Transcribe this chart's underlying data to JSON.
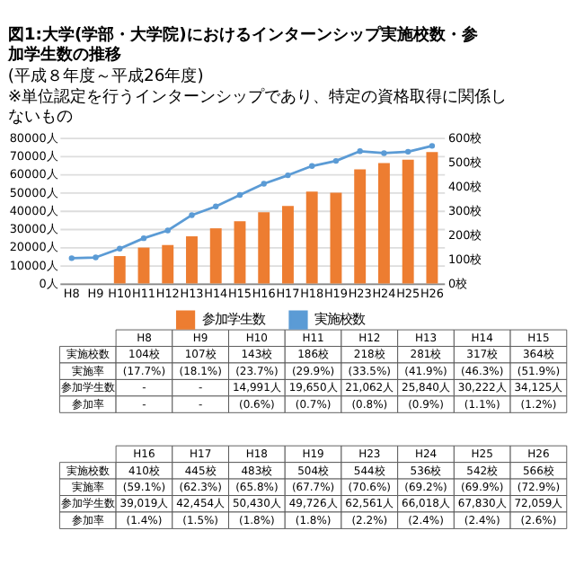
{
  "chart_data": {
    "type": "bar",
    "title": "図1:大学(学部・大学院)におけるインターンシップ実施校数・参加学生数の推移",
    "subtitle": "(平成８年度～平成26年度)",
    "categories": [
      "H8",
      "H9",
      "H10",
      "H11",
      "H12",
      "H13",
      "H14",
      "H15",
      "H16",
      "H17",
      "H18",
      "H19",
      "H23",
      "H24",
      "H25",
      "H26"
    ],
    "series": [
      {
        "name": "参加学生数",
        "type": "bar",
        "color": "#ed7d31",
        "values": [
          null,
          null,
          14991,
          19650,
          21062,
          25840,
          30222,
          34125,
          39019,
          42454,
          50430,
          49726,
          62561,
          66018,
          67830,
          72059
        ]
      },
      {
        "name": "実施校数",
        "type": "line",
        "axis": "y2",
        "color": "#5b9bd5",
        "values": [
          104,
          107,
          143,
          186,
          218,
          281,
          317,
          364,
          410,
          445,
          483,
          504,
          544,
          536,
          542,
          566
        ]
      }
    ],
    "ylim": [
      0,
      80000
    ],
    "yticks": [
      {
        "value": 0,
        "label": "0人"
      },
      {
        "value": 10000,
        "label": "10000人"
      },
      {
        "value": 20000,
        "label": "20000人"
      },
      {
        "value": 30000,
        "label": "30000人"
      },
      {
        "value": 40000,
        "label": "40000人"
      },
      {
        "value": 50000,
        "label": "50000人"
      },
      {
        "value": 60000,
        "label": "60000人"
      },
      {
        "value": 70000,
        "label": "70000人"
      },
      {
        "value": 80000,
        "label": "80000人"
      }
    ],
    "y2lim": [
      0,
      600
    ],
    "y2ticks": [
      {
        "value": 0,
        "label": "0校"
      },
      {
        "value": 100,
        "label": "100校"
      },
      {
        "value": 200,
        "label": "200校"
      },
      {
        "value": 300,
        "label": "300校"
      },
      {
        "value": 400,
        "label": "400校"
      },
      {
        "value": 500,
        "label": "500校"
      },
      {
        "value": 600,
        "label": "600校"
      }
    ],
    "grid": "y",
    "marker": "circle",
    "legend": "bottom",
    "annotations": [
      "※単位認定を行うインターンシップであり、特定の資格取得に関係しないもの",
      "実施校数",
      "104校",
      "107校",
      "143校",
      "186校",
      "218校",
      "281校",
      "317校",
      "364校",
      "410校",
      "445校",
      "483校",
      "504校",
      "544校",
      "536校",
      "542校",
      "566校",
      "実施率",
      "(17.7%)",
      "(18.1%)",
      "(23.7%)",
      "(29.9%)",
      "(33.5%)",
      "(41.9%)",
      "(46.3%)",
      "(51.9%)",
      "(59.1%)",
      "(62.3%)",
      "(65.8%)",
      "(67.7%)",
      "(70.6%)",
      "(69.2%)",
      "(69.9%)",
      "(72.9%)",
      "参加学生数",
      "-",
      "-",
      "14,991人",
      "19,650人",
      "21,062人",
      "25,840人",
      "30,222人",
      "34,125人",
      "39,019人",
      "42,454人",
      "50,430人",
      "49,726人",
      "62,561人",
      "66,018人",
      "67,830人",
      "72,059人",
      "参加率",
      "-",
      "-",
      "(0.6%)",
      "(0.7%)",
      "(0.8%)",
      "(0.9%)",
      "(1.1%)",
      "(1.2%)",
      "(1.4%)",
      "(1.5%)",
      "(1.8%)",
      "(1.8%)",
      "(2.2%)",
      "(2.4%)",
      "(2.4%)",
      "(2.6%)"
    ]
  }
}
